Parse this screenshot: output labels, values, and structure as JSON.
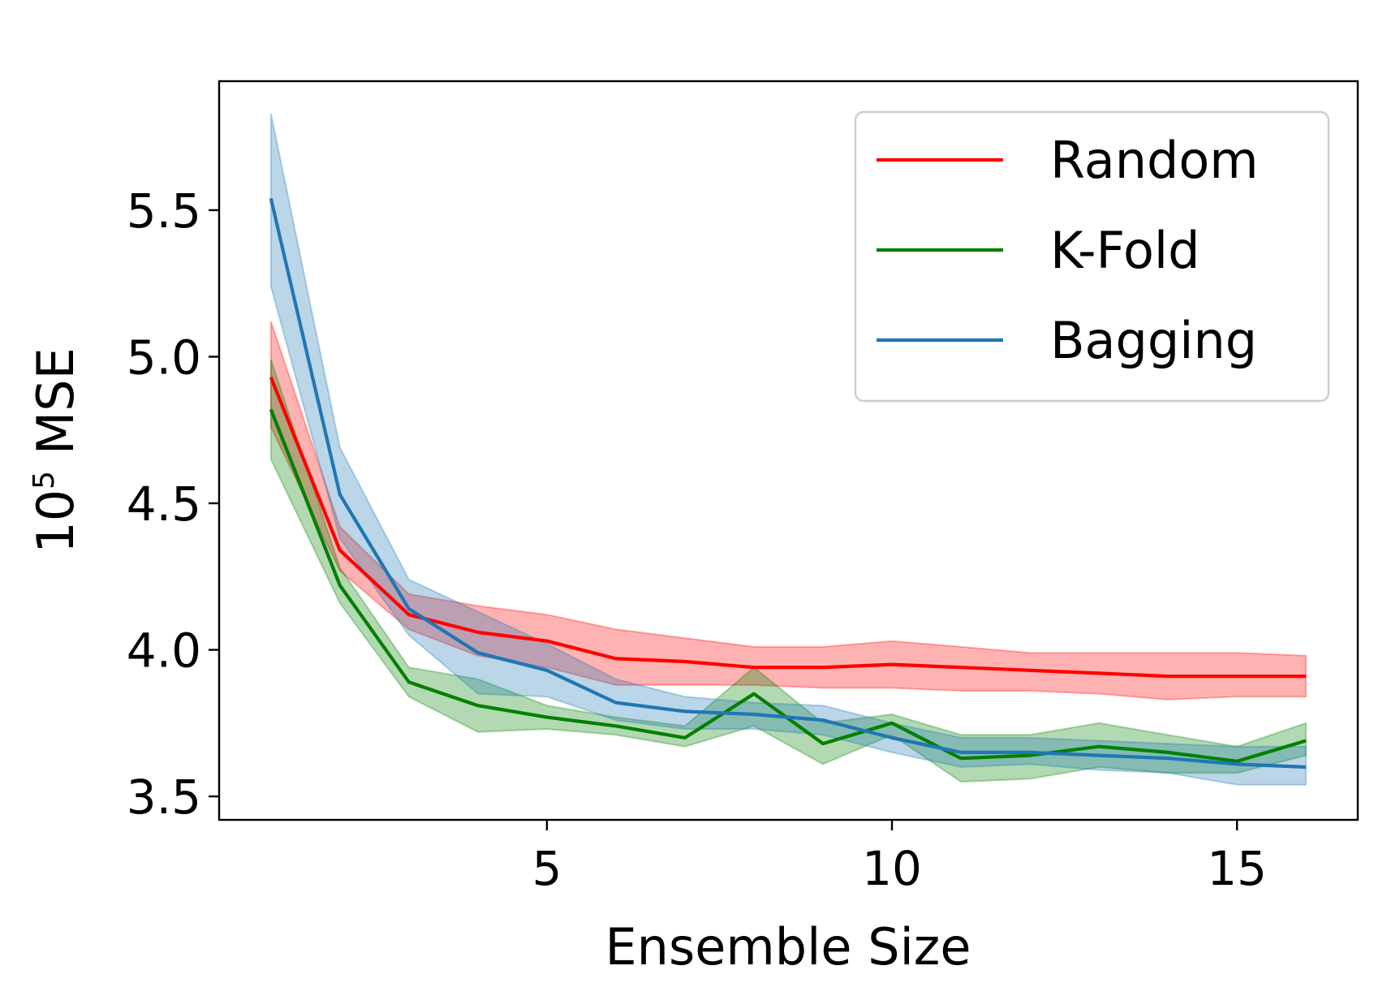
{
  "chart_data": {
    "type": "line",
    "xlabel": "Ensemble Size",
    "ylabel_base": "10",
    "ylabel_exp": "5",
    "ylabel_rest": " MSE",
    "xlim": [
      0.25,
      16.75
    ],
    "ylim": [
      3.42,
      5.94
    ],
    "xticks": [
      5,
      10,
      15
    ],
    "xtick_labels": [
      "5",
      "10",
      "15"
    ],
    "yticks": [
      3.5,
      4.0,
      4.5,
      5.0,
      5.5
    ],
    "ytick_labels": [
      "3.5",
      "4.0",
      "4.5",
      "5.0",
      "5.5"
    ],
    "legend_position": "upper right",
    "x": [
      1,
      2,
      3,
      4,
      5,
      6,
      7,
      8,
      9,
      10,
      11,
      12,
      13,
      14,
      15,
      16
    ],
    "series": [
      {
        "name": "Random",
        "color": "#ff0000",
        "values": [
          4.93,
          4.34,
          4.12,
          4.06,
          4.03,
          3.97,
          3.96,
          3.94,
          3.94,
          3.95,
          3.94,
          3.93,
          3.92,
          3.91,
          3.91,
          3.91
        ],
        "lower": [
          4.76,
          4.27,
          4.07,
          3.98,
          3.94,
          3.88,
          3.88,
          3.88,
          3.87,
          3.87,
          3.86,
          3.86,
          3.85,
          3.83,
          3.84,
          3.84
        ],
        "upper": [
          5.12,
          4.42,
          4.19,
          4.15,
          4.12,
          4.07,
          4.04,
          4.01,
          4.01,
          4.03,
          4.01,
          3.99,
          3.99,
          3.99,
          3.99,
          3.98
        ]
      },
      {
        "name": "K-Fold",
        "color": "#008000",
        "values": [
          4.82,
          4.22,
          3.89,
          3.81,
          3.77,
          3.74,
          3.7,
          3.85,
          3.68,
          3.75,
          3.63,
          3.64,
          3.67,
          3.65,
          3.62,
          3.69
        ],
        "lower": [
          4.65,
          4.16,
          3.84,
          3.72,
          3.73,
          3.71,
          3.67,
          3.74,
          3.61,
          3.71,
          3.55,
          3.56,
          3.6,
          3.58,
          3.58,
          3.64
        ],
        "upper": [
          4.99,
          4.28,
          3.94,
          3.9,
          3.81,
          3.77,
          3.74,
          3.94,
          3.75,
          3.78,
          3.71,
          3.71,
          3.75,
          3.71,
          3.67,
          3.75
        ]
      },
      {
        "name": "Bagging",
        "color": "#1f77b4",
        "values": [
          5.54,
          4.53,
          4.14,
          3.99,
          3.93,
          3.82,
          3.79,
          3.78,
          3.76,
          3.7,
          3.65,
          3.65,
          3.64,
          3.63,
          3.61,
          3.6
        ],
        "lower": [
          5.24,
          4.38,
          4.05,
          3.85,
          3.84,
          3.76,
          3.73,
          3.73,
          3.71,
          3.65,
          3.6,
          3.61,
          3.59,
          3.58,
          3.54,
          3.54
        ],
        "upper": [
          5.83,
          4.69,
          4.24,
          4.13,
          4.02,
          3.9,
          3.84,
          3.82,
          3.81,
          3.75,
          3.7,
          3.7,
          3.69,
          3.68,
          3.67,
          3.67
        ]
      }
    ]
  }
}
